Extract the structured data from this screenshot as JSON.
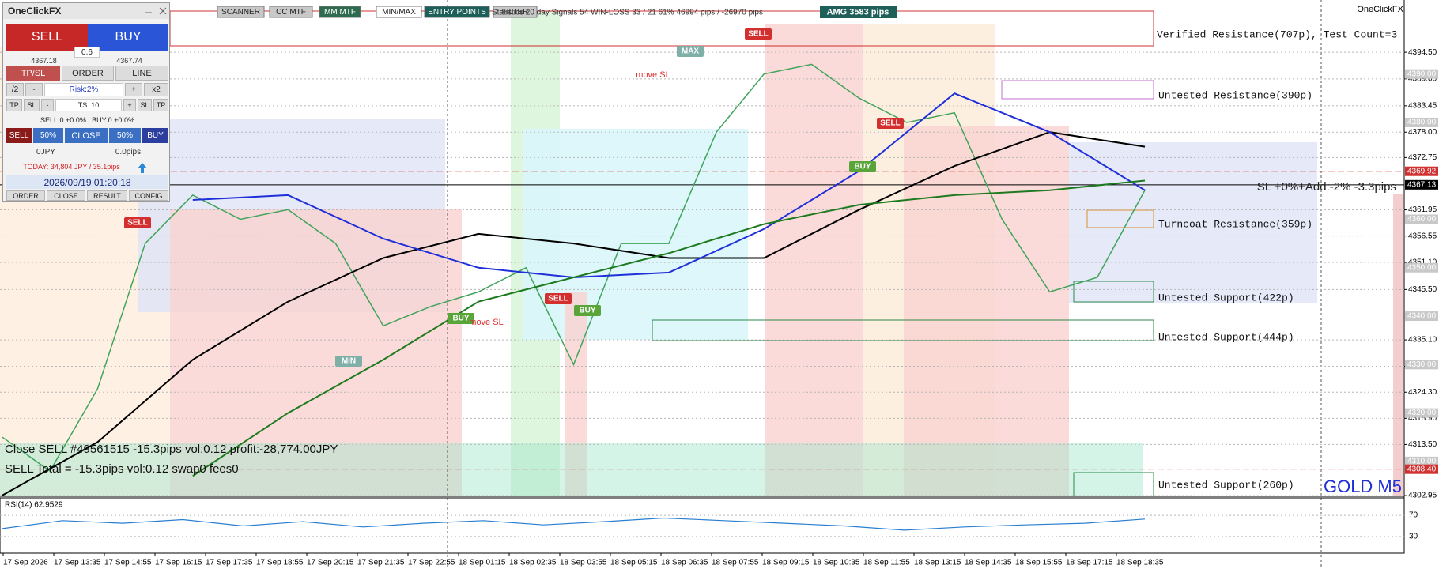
{
  "brand": "OneClickFX",
  "panel": {
    "title": "OneClickFX",
    "sell": "SELL",
    "buy": "BUY",
    "lot": "0.6",
    "bid": "4367.18",
    "ask": "4367.74",
    "tabs": [
      "TP/SL",
      "ORDER",
      "LINE"
    ],
    "risk_row": [
      "/2",
      "-",
      "Risk:2%",
      "+",
      "x2"
    ],
    "ts_row": [
      "TP",
      "SL",
      "-",
      "TS: 10",
      "+",
      "SL",
      "TP"
    ],
    "positions": "SELL:0 +0.0% | BUY:0 +0.0%",
    "close_row": [
      "SELL",
      "50%",
      "CLOSE",
      "50%",
      "BUY"
    ],
    "pl_jpy": "0JPY",
    "pl_pips": "0.0pips",
    "today": "TODAY: 34,804 JPY / 35.1pips",
    "datetime": "2026/09/19  01:20:18",
    "footer": [
      "ORDER",
      "CLOSE",
      "RESULT",
      "CONFIG"
    ]
  },
  "toolbar": {
    "buttons": [
      "SCANNER",
      "CC MTF",
      "MM MTF",
      "MIN/MAX",
      "ENTRY POINTS",
      "FILTER"
    ],
    "statistics": "Statistics 20 day  Signals 54  WIN-LOSS 33 / 21  61%  46994 pips / -26970 pips",
    "amg": "AMG  3583 pips"
  },
  "chart_data": {
    "type": "line",
    "symbol": "GOLD M5",
    "ylim": [
      4302.8,
      4404.8
    ],
    "yticks": [
      {
        "value": 4394.5,
        "label": "4394.50"
      },
      {
        "value": 4389,
        "label": "4389.00"
      },
      {
        "value": 4383.45,
        "label": "4383.45"
      },
      {
        "value": 4378,
        "label": "4378.00"
      },
      {
        "value": 4372.75,
        "label": "4372.75"
      },
      {
        "value": 4361.95,
        "label": "4361.95"
      },
      {
        "value": 4356.55,
        "label": "4356.55"
      },
      {
        "value": 4351.1,
        "label": "4351.10"
      },
      {
        "value": 4345.5,
        "label": "4345.50"
      },
      {
        "value": 4335.1,
        "label": "4335.10"
      },
      {
        "value": 4329.65,
        "label": "4329.65"
      },
      {
        "value": 4324.3,
        "label": "4324.30"
      },
      {
        "value": 4318.9,
        "label": "4318.90"
      },
      {
        "value": 4313.5,
        "label": "4313.50"
      },
      {
        "value": 4302.95,
        "label": "4302.95"
      }
    ],
    "grid": true,
    "levels": [
      {
        "value": 4390,
        "label": "4390.00",
        "color": "#c8c8c8"
      },
      {
        "value": 4380,
        "label": "4380.00",
        "color": "#c8c8c8"
      },
      {
        "value": 4369.92,
        "label": "4369.92",
        "color": "#d03030"
      },
      {
        "value": 4367.13,
        "label": "4367.13",
        "color": "#000000"
      },
      {
        "value": 4360,
        "label": "4360.00",
        "color": "#c8c8c8"
      },
      {
        "value": 4350,
        "label": "4350.00",
        "color": "#c8c8c8"
      },
      {
        "value": 4340,
        "label": "4340.00",
        "color": "#c8c8c8"
      },
      {
        "value": 4330,
        "label": "4330.00",
        "color": "#c8c8c8"
      },
      {
        "value": 4320,
        "label": "4320.00",
        "color": "#c8c8c8"
      },
      {
        "value": 4310,
        "label": "4310.00",
        "color": "#c8c8c8"
      },
      {
        "value": 4308.4,
        "label": "4308.40",
        "color": "#d03030"
      }
    ],
    "time_labels": [
      "17 Sep 2026",
      "17 Sep 13:35",
      "17 Sep 14:55",
      "17 Sep 16:15",
      "17 Sep 17:35",
      "17 Sep 18:55",
      "17 Sep 20:15",
      "17 Sep 21:35",
      "17 Sep 22:55",
      "18 Sep 01:15",
      "18 Sep 02:35",
      "18 Sep 03:55",
      "18 Sep 05:15",
      "18 Sep 06:35",
      "18 Sep 07:55",
      "18 Sep 09:15",
      "18 Sep 10:35",
      "18 Sep 11:55",
      "18 Sep 13:15",
      "18 Sep 14:35",
      "18 Sep 15:55",
      "18 Sep 17:15",
      "18 Sep 18:35"
    ],
    "series": [
      {
        "color": "#3fa35a",
        "values": [
          4315,
          4308,
          4325,
          4355,
          4365,
          4360,
          4362,
          4355,
          4338,
          4342,
          4345,
          4350,
          4330,
          4355,
          4355,
          4378,
          4390,
          4392,
          4385,
          4380,
          4382,
          4360,
          4345,
          4348,
          4366
        ]
      },
      {
        "color": "#000000",
        "values": [
          4303,
          4314,
          4331,
          4343,
          4352,
          4357,
          4355,
          4352,
          4352,
          4362,
          4371,
          4378,
          4375
        ]
      },
      {
        "color": "#1f2fd8",
        "values": [
          null,
          null,
          4364,
          4365,
          4356,
          4350,
          4348,
          4349,
          4358,
          4370,
          4386,
          4378,
          4366
        ]
      },
      {
        "color": "#1e7a1e",
        "values": [
          null,
          null,
          4307,
          4320,
          4331,
          4343,
          4348,
          4353,
          4359,
          4363,
          4365,
          4366,
          4368
        ]
      }
    ],
    "zones": [
      "Verified Resistance(707p), Test Count=3",
      "Untested Resistance(390p)",
      "Turncoat Resistance(359p)",
      "Untested Support(422p)",
      "Untested Support(444p)",
      "Untested Support(260p)"
    ],
    "annotation": "SL +0%+Add:-2% -3.3pips",
    "signals": [
      "SELL",
      "SELL",
      "SELL",
      "SELL",
      "BUY",
      "BUY",
      "BUY",
      "MAX",
      "MIN",
      "move SL",
      "move SL"
    ],
    "trade_lines": [
      "Close SELL #49561515 -15.3pips vol:0.12 profit:-28,774.00JPY",
      "SELL Total = -15.3pips vol:0.12 swap0 fees0"
    ],
    "rsi": {
      "label": "RSI(14) 62.9529",
      "ylim": [
        0,
        100
      ],
      "yticks": [
        70,
        30
      ],
      "color": "#2a7fd0",
      "values": [
        45,
        60,
        55,
        62,
        50,
        58,
        48,
        55,
        60,
        52,
        58,
        65,
        60,
        55,
        50,
        42,
        48,
        52,
        55,
        63
      ]
    }
  }
}
